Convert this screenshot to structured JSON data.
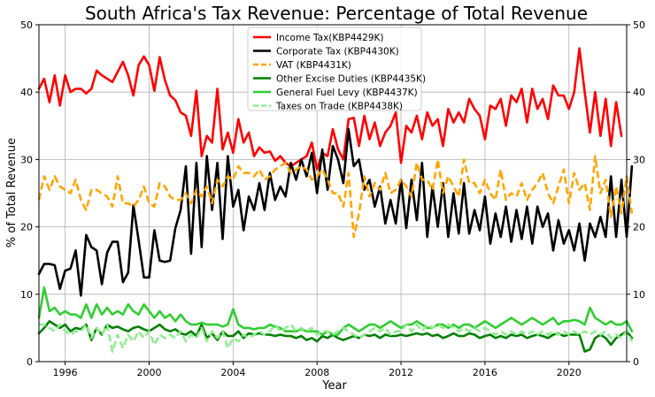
{
  "chart_data": {
    "type": "line",
    "title": "South Africa's Tax Revenue: Percentage of Total Revenue",
    "xlabel": "Year",
    "ylabel": "% of Total Revenue",
    "xlim": [
      1994.75,
      2022.75
    ],
    "ylim": [
      0,
      50
    ],
    "x_ticks": [
      1996,
      2000,
      2004,
      2008,
      2012,
      2016,
      2020
    ],
    "y_ticks": [
      0,
      10,
      20,
      30,
      40,
      50
    ],
    "grid": true,
    "legend_position": "top-center",
    "start_period": "1994-Q4",
    "series": [
      {
        "name": "Income Tax(KBP4429K)",
        "color": "#ff0000",
        "dash": "solid",
        "values": [
          40.5,
          42.0,
          38.5,
          42.5,
          38.0,
          42.5,
          40.0,
          40.5,
          40.5,
          39.8,
          40.5,
          43.2,
          42.5,
          42.0,
          41.5,
          43.0,
          44.5,
          42.5,
          39.5,
          44.0,
          45.3,
          44.0,
          40.2,
          45.2,
          41.8,
          39.5,
          38.8,
          37.0,
          36.5,
          33.5,
          40.2,
          30.5,
          33.5,
          32.5,
          40.5,
          31.5,
          34.0,
          31.0,
          36.0,
          32.5,
          34.0,
          30.5,
          31.8,
          31.0,
          31.2,
          29.8,
          30.5,
          29.5,
          29.0,
          29.5,
          30.0,
          30.5,
          32.5,
          28.5,
          31.0,
          30.5,
          34.5,
          31.5,
          30.0,
          36.0,
          36.2,
          32.0,
          36.5,
          33.0,
          35.5,
          32.0,
          34.0,
          35.0,
          37.0,
          29.5,
          35.0,
          34.0,
          36.5,
          33.0,
          37.0,
          35.0,
          36.0,
          32.0,
          37.5,
          35.5,
          37.0,
          35.5,
          39.0,
          37.5,
          36.5,
          33.0,
          38.0,
          37.5,
          39.0,
          35.0,
          39.5,
          38.5,
          40.5,
          35.5,
          40.5,
          37.5,
          39.0,
          36.0,
          41.0,
          39.5,
          39.5,
          37.5,
          40.0,
          46.5,
          40.0,
          34.0,
          40.0,
          33.5,
          39.0,
          32.0,
          38.5,
          33.5
        ]
      },
      {
        "name": "Corporate Tax (KBP4430K)",
        "color": "#000000",
        "dash": "solid",
        "values": [
          13.0,
          14.5,
          14.5,
          14.3,
          10.8,
          13.5,
          13.8,
          16.5,
          9.8,
          18.8,
          17.0,
          16.5,
          11.5,
          16.2,
          17.8,
          17.8,
          11.8,
          13.2,
          23.2,
          18.0,
          12.5,
          12.5,
          19.5,
          15.0,
          14.8,
          15.0,
          19.8,
          22.5,
          29.0,
          16.0,
          29.5,
          17.0,
          30.5,
          22.5,
          29.5,
          18.2,
          30.5,
          23.0,
          25.5,
          19.5,
          24.5,
          22.5,
          26.5,
          22.5,
          28.0,
          24.0,
          26.0,
          24.5,
          29.5,
          27.0,
          30.0,
          27.5,
          31.0,
          25.0,
          31.5,
          25.5,
          32.0,
          30.0,
          26.5,
          34.5,
          29.0,
          30.0,
          25.5,
          27.0,
          23.0,
          26.0,
          20.5,
          24.0,
          20.5,
          27.0,
          19.8,
          27.0,
          21.0,
          29.5,
          18.5,
          26.0,
          20.0,
          26.5,
          18.5,
          25.0,
          19.0,
          26.5,
          19.0,
          22.5,
          19.5,
          24.5,
          17.5,
          22.0,
          18.5,
          23.0,
          17.8,
          22.5,
          18.2,
          23.0,
          17.5,
          23.0,
          20.0,
          22.0,
          16.5,
          21.0,
          17.5,
          19.5,
          16.5,
          20.5,
          15.0,
          20.5,
          18.5,
          21.5,
          18.5,
          27.5,
          18.5,
          27.0,
          18.5,
          29.0
        ]
      },
      {
        "name": "VAT (KBP4431K)",
        "color": "#ffa500",
        "dash": "dashed",
        "values": [
          24.0,
          27.5,
          25.5,
          27.5,
          26.0,
          25.5,
          25.0,
          27.0,
          24.0,
          22.5,
          25.5,
          25.5,
          25.0,
          24.5,
          23.0,
          27.5,
          23.5,
          23.5,
          23.0,
          24.0,
          26.0,
          23.5,
          23.0,
          26.5,
          26.0,
          24.5,
          24.0,
          24.0,
          25.0,
          23.5,
          25.5,
          24.5,
          26.0,
          23.5,
          27.0,
          26.0,
          27.5,
          27.0,
          29.0,
          28.0,
          28.0,
          27.5,
          28.5,
          27.0,
          27.5,
          28.5,
          29.0,
          29.5,
          28.0,
          28.5,
          29.0,
          28.5,
          27.0,
          27.5,
          28.5,
          27.0,
          25.0,
          25.0,
          23.0,
          28.0,
          18.5,
          22.0,
          27.5,
          24.5,
          26.5,
          25.5,
          28.0,
          25.0,
          25.5,
          27.0,
          26.0,
          24.5,
          29.5,
          27.0,
          27.0,
          25.5,
          30.0,
          25.0,
          27.5,
          26.0,
          24.5,
          30.0,
          26.5,
          26.5,
          25.0,
          27.0,
          25.0,
          24.0,
          28.5,
          24.0,
          25.0,
          24.5,
          26.5,
          24.0,
          25.5,
          26.5,
          28.0,
          25.0,
          23.5,
          26.0,
          28.5,
          23.5,
          28.0,
          25.5,
          26.5,
          22.5,
          30.5,
          25.0,
          27.0,
          21.5,
          26.0,
          22.0,
          27.5,
          22.0
        ]
      },
      {
        "name": "Other Excise Duties (KBP4435K)",
        "color": "#008000",
        "dash": "solid",
        "values": [
          4.2,
          5.0,
          6.0,
          5.5,
          5.0,
          5.5,
          4.5,
          5.0,
          4.8,
          5.5,
          3.2,
          5.0,
          4.0,
          5.5,
          5.0,
          5.2,
          4.8,
          4.5,
          5.0,
          5.2,
          4.8,
          4.5,
          5.0,
          5.5,
          4.8,
          4.5,
          4.8,
          4.2,
          4.0,
          4.5,
          3.8,
          5.5,
          3.5,
          4.2,
          3.2,
          4.5,
          3.8,
          3.8,
          4.5,
          3.5,
          4.2,
          4.0,
          4.2,
          4.0,
          4.0,
          3.8,
          4.0,
          3.8,
          3.8,
          3.5,
          3.8,
          3.2,
          3.5,
          3.0,
          3.8,
          3.5,
          4.0,
          3.5,
          3.2,
          3.5,
          3.8,
          3.5,
          4.0,
          3.8,
          4.0,
          3.5,
          4.0,
          3.8,
          3.8,
          4.0,
          3.8,
          4.0,
          4.2,
          4.0,
          4.2,
          3.8,
          4.0,
          3.5,
          3.8,
          4.2,
          3.8,
          3.8,
          4.2,
          4.0,
          3.5,
          3.8,
          4.0,
          3.5,
          3.8,
          3.5,
          4.0,
          3.8,
          4.0,
          3.5,
          3.8,
          4.0,
          3.8,
          3.5,
          4.0,
          4.2,
          3.8,
          4.0,
          4.0,
          4.0,
          1.5,
          1.8,
          3.5,
          4.0,
          3.5,
          2.5,
          3.5,
          4.0,
          4.5,
          3.5
        ]
      },
      {
        "name": "General Fuel Levy (KBP4437K)",
        "color": "#32cd32",
        "dash": "solid",
        "values": [
          6.5,
          11.0,
          7.5,
          8.0,
          7.0,
          7.5,
          7.0,
          7.0,
          6.5,
          8.5,
          6.5,
          8.5,
          7.0,
          8.0,
          7.0,
          7.5,
          7.0,
          8.5,
          7.5,
          7.0,
          8.5,
          7.5,
          6.5,
          7.5,
          6.5,
          7.0,
          6.0,
          7.0,
          6.0,
          5.5,
          5.5,
          5.8,
          5.5,
          5.5,
          5.5,
          5.2,
          5.5,
          7.8,
          5.5,
          5.0,
          5.0,
          4.8,
          5.0,
          5.0,
          5.5,
          5.2,
          5.0,
          4.5,
          4.5,
          4.5,
          4.8,
          4.5,
          4.5,
          4.5,
          4.0,
          4.5,
          4.0,
          4.0,
          5.0,
          5.5,
          5.0,
          4.5,
          5.0,
          5.5,
          5.5,
          5.0,
          5.5,
          6.0,
          5.5,
          5.0,
          5.5,
          5.5,
          6.0,
          5.5,
          5.0,
          5.0,
          5.5,
          5.5,
          5.0,
          5.5,
          5.0,
          5.5,
          5.5,
          5.0,
          5.5,
          6.0,
          5.5,
          5.0,
          5.5,
          6.0,
          6.5,
          6.0,
          5.5,
          6.0,
          6.5,
          6.0,
          5.5,
          6.0,
          6.5,
          5.5,
          6.0,
          6.0,
          6.2,
          6.0,
          5.5,
          8.0,
          6.5,
          6.0,
          5.5,
          6.0,
          5.5,
          5.5,
          6.0,
          4.5
        ]
      },
      {
        "name": "Taxes on Trade (KBP4438K)",
        "color": "#90ee90",
        "dash": "dashed",
        "values": [
          5.5,
          5.5,
          5.0,
          4.5,
          5.5,
          4.5,
          4.0,
          4.5,
          4.5,
          5.5,
          3.5,
          5.0,
          4.0,
          5.5,
          1.5,
          4.0,
          2.0,
          4.0,
          3.0,
          4.5,
          3.5,
          4.5,
          2.5,
          4.0,
          3.5,
          4.0,
          3.5,
          4.5,
          3.0,
          4.0,
          3.5,
          5.0,
          3.0,
          4.5,
          3.5,
          4.5,
          2.0,
          3.5,
          3.0,
          4.0,
          3.5,
          4.0,
          4.5,
          4.0,
          4.5,
          5.5,
          4.5,
          5.0,
          5.5,
          4.5,
          5.0,
          4.5,
          5.0,
          4.0,
          4.5,
          4.5,
          4.0,
          4.5,
          5.0,
          4.5,
          4.0,
          3.5,
          4.0,
          4.5,
          5.0,
          4.5,
          5.0,
          4.0,
          4.5,
          4.5,
          5.5,
          4.5,
          5.5,
          4.5,
          5.5,
          5.0,
          5.5,
          5.0,
          5.5,
          5.0,
          4.5,
          5.0,
          4.5,
          5.0,
          4.5,
          5.0,
          4.5,
          4.0,
          4.5,
          4.0,
          4.5,
          4.0,
          4.5,
          4.0,
          4.5,
          4.0,
          4.5,
          4.0,
          4.5,
          4.0,
          4.5,
          4.0,
          4.5,
          4.0,
          4.5,
          4.0,
          4.5,
          4.0,
          4.5,
          3.5,
          4.0,
          3.5,
          4.5,
          3.0
        ]
      }
    ]
  }
}
